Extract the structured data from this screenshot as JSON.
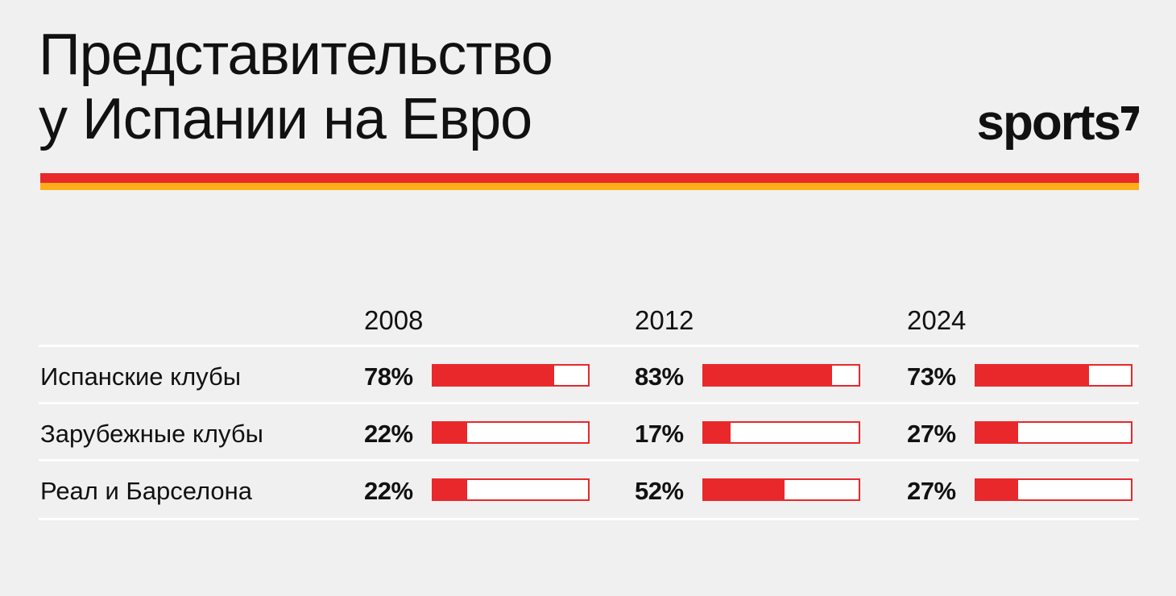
{
  "title": {
    "line1": "Представительство",
    "line2": "у Испании на Евро"
  },
  "logo": {
    "text": "sports",
    "mark_icon": "slash-mark-icon"
  },
  "colors": {
    "background": "#f1f0f0",
    "stripe_red": "#e8282b",
    "stripe_orange": "#ffae1a",
    "bar_fill": "#e8282b",
    "bar_track": "#ffffff",
    "text": "#111111"
  },
  "chart_data": {
    "type": "table",
    "categories": [
      "2008",
      "2012",
      "2024"
    ],
    "rows": [
      {
        "label": "Испанские клубы",
        "values": [
          78,
          83,
          73
        ],
        "display": [
          "78%",
          "83%",
          "73%"
        ]
      },
      {
        "label": "Зарубежные клубы",
        "values": [
          22,
          17,
          27
        ],
        "display": [
          "22%",
          "17%",
          "27%"
        ]
      },
      {
        "label": "Реал и Барселона",
        "values": [
          22,
          52,
          27
        ],
        "display": [
          "22%",
          "52%",
          "27%"
        ]
      }
    ],
    "value_range": [
      0,
      100
    ]
  }
}
